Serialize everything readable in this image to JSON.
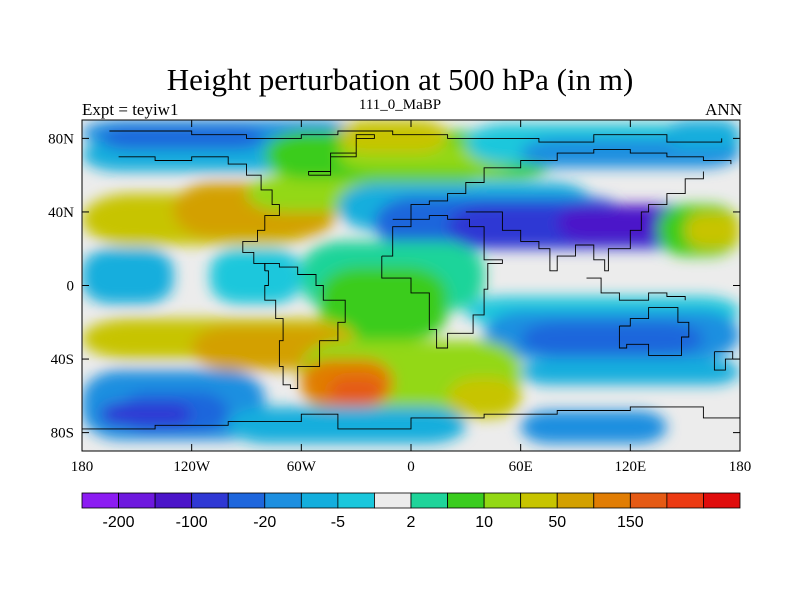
{
  "chart_data": {
    "type": "heatmap",
    "title": "Height perturbation at 500 hPa (in m)",
    "subtitle_left": "Expt = teyiw1",
    "subtitle_center": "111_0_MaBP",
    "subtitle_right": "ANN",
    "x": {
      "min": -180,
      "max": 180,
      "tick_values": [
        -180,
        -120,
        -60,
        0,
        60,
        120,
        180
      ],
      "tick_labels": [
        "180",
        "120W",
        "60W",
        "0",
        "60E",
        "120E",
        "180"
      ]
    },
    "y": {
      "min": -90,
      "max": 90,
      "tick_values": [
        80,
        40,
        0,
        -40,
        -80
      ],
      "tick_labels": [
        "80N",
        "40N",
        "0",
        "40S",
        "80S"
      ]
    },
    "colorbar": {
      "colors": [
        "#8c1cf2",
        "#6e18de",
        "#4b14c9",
        "#2f38d4",
        "#1e66dc",
        "#1d8fe0",
        "#13aedd",
        "#1ac7dc",
        "#ececec",
        "#1fd49a",
        "#3acc1e",
        "#93d814",
        "#c7c400",
        "#d3a000",
        "#e17d04",
        "#e55a14",
        "#ec3a12",
        "#e00c0c"
      ],
      "labels": [
        "-200",
        "-100",
        "-20",
        "-5",
        "2",
        "10",
        "50",
        "150"
      ]
    },
    "bands": [
      {
        "lat_top": 90,
        "lat_bottom": 78,
        "level": 5,
        "note": "north polar blue"
      },
      {
        "lat_top": 72,
        "lat_bottom": 60,
        "level": 6
      },
      {
        "lat_top": 50,
        "lat_bottom": 24,
        "level": 12,
        "note": "northern mid-latitude yellow belt (W hemisphere)"
      },
      {
        "lat_top": 36,
        "lat_bottom": 14,
        "level": 4,
        "note": "northern blue belt (E hemisphere)"
      },
      {
        "lat_top": 10,
        "lat_bottom": -6,
        "level": 8,
        "note": "tropics near zero"
      },
      {
        "lat_top": -22,
        "lat_bottom": -42,
        "level": 12,
        "note": "southern yellow belt (W hemisphere)"
      },
      {
        "lat_top": -18,
        "lat_bottom": -54,
        "level": 4,
        "note": "southern blue belt (E hemisphere)"
      },
      {
        "lat_top": -44,
        "lat_bottom": -66,
        "level": 14,
        "note": "orange maximum ~50-150 m near 40W,55S"
      },
      {
        "lat_top": -64,
        "lat_bottom": -84,
        "level": 5,
        "note": "south polar blue"
      }
    ]
  }
}
